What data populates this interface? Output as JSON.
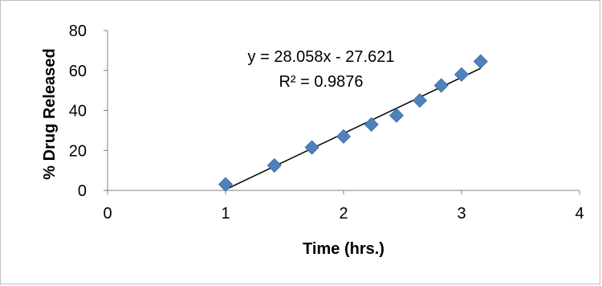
{
  "chart_data": {
    "type": "scatter",
    "title": "",
    "xlabel": "Time (hrs.)",
    "ylabel": "% Drug  Released",
    "xlim": [
      0,
      4
    ],
    "ylim": [
      0,
      80
    ],
    "xticks": [
      "0",
      "1",
      "2",
      "3",
      "4"
    ],
    "yticks": [
      "0",
      "20",
      "40",
      "60",
      "80"
    ],
    "grid": false,
    "legend": "none",
    "marker_color": "#4f81bd",
    "series": [
      {
        "x": [
          1.0,
          1.414,
          1.732,
          2.0,
          2.236,
          2.449,
          2.646,
          2.828,
          3.0,
          3.162
        ],
        "y": [
          3,
          12.5,
          21.5,
          27,
          33,
          37.5,
          45,
          52.5,
          58,
          64.5
        ]
      }
    ],
    "trendline": {
      "slope": 28.058,
      "intercept": -27.621,
      "x_range": [
        1.0,
        3.162
      ],
      "color": "#000000"
    },
    "annotations": {
      "equation": "y = 28.058x - 27.621",
      "r_squared": "R² = 0.9876"
    }
  }
}
